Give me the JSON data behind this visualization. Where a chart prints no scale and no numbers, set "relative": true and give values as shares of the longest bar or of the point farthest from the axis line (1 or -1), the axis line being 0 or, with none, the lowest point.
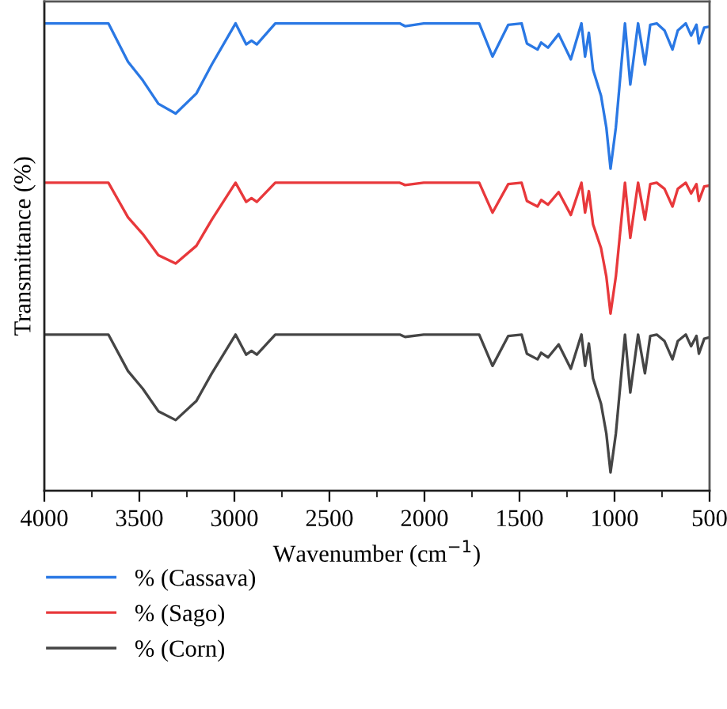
{
  "chart_data": {
    "type": "line",
    "relative": true,
    "xlabel": "Wavenumber (cm$^{−1}$)",
    "ylabel": "Transmittance (%)",
    "x": [
      4000,
      3663,
      3560,
      3482,
      3400,
      3309,
      3200,
      3119,
      2994,
      2938,
      2910,
      2882,
      2785,
      2130,
      2102,
      2004,
      1712,
      1642,
      1559,
      1489,
      1461,
      1405,
      1386,
      1350,
      1294,
      1230,
      1174,
      1155,
      1135,
      1113,
      1071,
      1043,
      1021,
      993,
      945,
      917,
      876,
      840,
      812,
      778,
      737,
      695,
      667,
      625,
      597,
      569,
      556,
      528,
      500
    ],
    "xlim": [
      4000,
      500
    ],
    "xticks": [
      4000,
      {
        "value": 3750,
        "label": null
      },
      3500,
      {
        "value": 3250,
        "label": null
      },
      3000,
      {
        "value": 2750,
        "label": null
      },
      2500,
      {
        "value": 2250,
        "label": null
      },
      2000,
      {
        "value": 1750,
        "label": null
      },
      1500,
      {
        "value": 1250,
        "label": null
      },
      1000,
      {
        "value": 750,
        "label": null
      },
      500
    ],
    "legend": "bottom",
    "grid": false,
    "marker": "none",
    "line_style": "solid",
    "tick_labels": "x",
    "series": [
      {
        "name": "% (Cassava)",
        "color": "#2a78e4",
        "values": [
          1.0,
          1.0,
          0.918,
          0.878,
          0.828,
          0.807,
          0.85,
          0.912,
          1.0,
          0.955,
          0.963,
          0.955,
          1.0,
          1.0,
          0.994,
          1.0,
          1.0,
          0.929,
          0.997,
          1.0,
          0.957,
          0.944,
          0.959,
          0.948,
          0.977,
          0.923,
          1.0,
          0.929,
          0.98,
          0.901,
          0.845,
          0.777,
          0.689,
          0.777,
          1.0,
          0.869,
          1.0,
          0.912,
          0.997,
          1.0,
          0.985,
          0.944,
          0.985,
          1.0,
          0.974,
          0.997,
          0.957,
          0.991,
          0.993
        ]
      },
      {
        "name": "% (Sago)",
        "color": "#e8383b",
        "values": [
          0.659,
          0.659,
          0.585,
          0.549,
          0.504,
          0.486,
          0.524,
          0.58,
          0.659,
          0.618,
          0.626,
          0.618,
          0.659,
          0.659,
          0.654,
          0.659,
          0.659,
          0.595,
          0.656,
          0.659,
          0.62,
          0.608,
          0.622,
          0.612,
          0.639,
          0.59,
          0.659,
          0.595,
          0.641,
          0.57,
          0.519,
          0.458,
          0.379,
          0.458,
          0.659,
          0.541,
          0.659,
          0.58,
          0.656,
          0.659,
          0.646,
          0.608,
          0.646,
          0.659,
          0.636,
          0.656,
          0.62,
          0.651,
          0.653
        ]
      },
      {
        "name": "% (Corn)",
        "color": "#454545",
        "values": [
          0.334,
          0.334,
          0.256,
          0.218,
          0.17,
          0.151,
          0.192,
          0.251,
          0.334,
          0.291,
          0.299,
          0.291,
          0.334,
          0.334,
          0.329,
          0.334,
          0.334,
          0.267,
          0.331,
          0.334,
          0.293,
          0.281,
          0.295,
          0.285,
          0.313,
          0.261,
          0.334,
          0.267,
          0.315,
          0.24,
          0.186,
          0.122,
          0.039,
          0.122,
          0.334,
          0.21,
          0.334,
          0.251,
          0.331,
          0.334,
          0.32,
          0.281,
          0.32,
          0.334,
          0.309,
          0.331,
          0.293,
          0.325,
          0.328
        ]
      }
    ]
  }
}
